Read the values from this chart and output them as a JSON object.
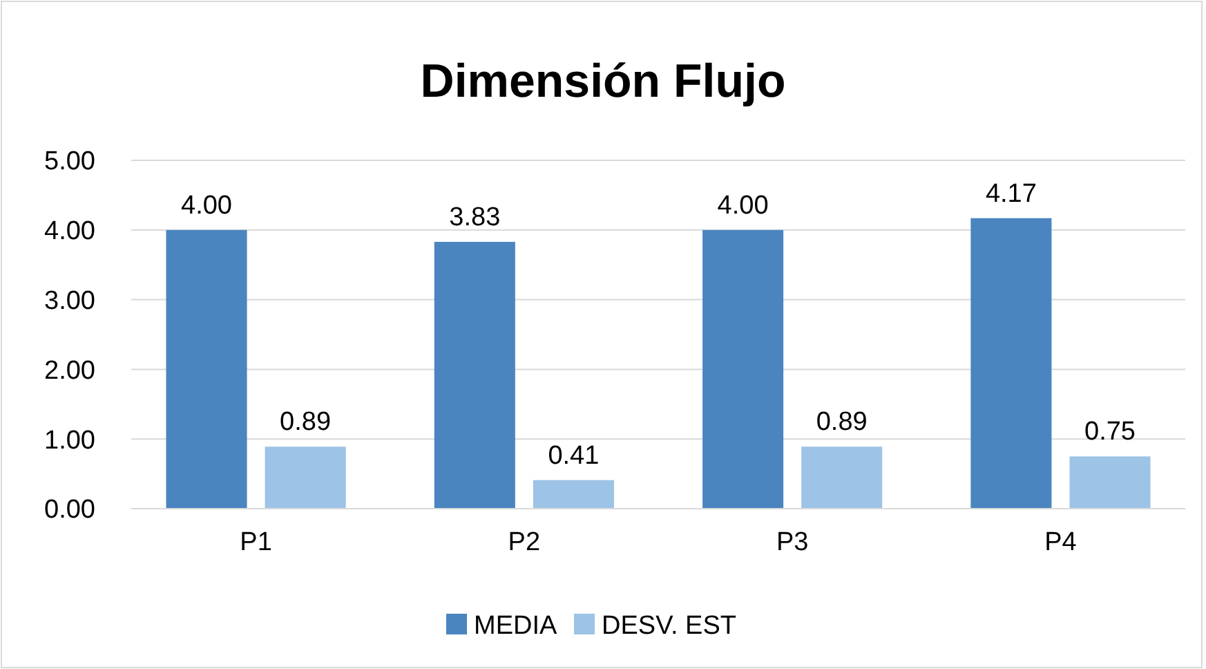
{
  "chart_data": {
    "type": "bar",
    "title": "Dimensión Flujo",
    "categories": [
      "P1",
      "P2",
      "P3",
      "P4"
    ],
    "series": [
      {
        "name": "MEDIA",
        "color": "#4a85c0",
        "values": [
          4.0,
          3.83,
          4.0,
          4.17
        ],
        "value_labels": [
          "4.00",
          "3.83",
          "4.00",
          "4.17"
        ]
      },
      {
        "name": "DESV. EST",
        "color": "#9dc3e6",
        "values": [
          0.89,
          0.41,
          0.89,
          0.75
        ],
        "value_labels": [
          "0.89",
          "0.41",
          "0.89",
          "0.75"
        ]
      }
    ],
    "ylim": [
      0,
      5
    ],
    "yticks": [
      {
        "value": 0,
        "label": "0.00"
      },
      {
        "value": 1,
        "label": "1.00"
      },
      {
        "value": 2,
        "label": "2.00"
      },
      {
        "value": 3,
        "label": "3.00"
      },
      {
        "value": 4,
        "label": "4.00"
      },
      {
        "value": 5,
        "label": "5.00"
      }
    ],
    "grid": "y",
    "legend": "bottom"
  }
}
